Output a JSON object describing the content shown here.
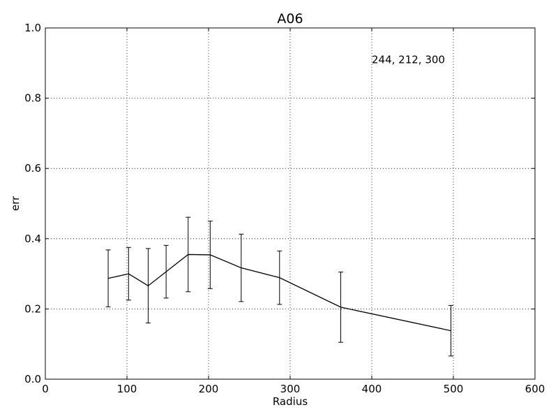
{
  "chart_data": {
    "type": "line",
    "title": "A06",
    "xlabel": "Radius",
    "ylabel": "err",
    "xlim": [
      0,
      600
    ],
    "ylim": [
      0,
      1.0
    ],
    "xticks": [
      0,
      100,
      200,
      300,
      400,
      500,
      600
    ],
    "yticks": [
      0.0,
      0.2,
      0.4,
      0.6,
      0.8,
      1.0
    ],
    "xtick_labels": [
      "0",
      "100",
      "200",
      "300",
      "400",
      "500",
      "600"
    ],
    "ytick_labels": [
      "0.0",
      "0.2",
      "0.4",
      "0.6",
      "0.8",
      "1.0"
    ],
    "grid": true,
    "annotation": {
      "text": "244, 212, 300",
      "x": 400,
      "y": 0.9
    },
    "series": [
      {
        "color": "#000000",
        "points": [
          {
            "x": 77,
            "y": 0.287,
            "err": 0.081
          },
          {
            "x": 102,
            "y": 0.3,
            "err": 0.075
          },
          {
            "x": 126,
            "y": 0.266,
            "err": 0.106
          },
          {
            "x": 148,
            "y": 0.306,
            "err": 0.075
          },
          {
            "x": 175,
            "y": 0.355,
            "err": 0.106
          },
          {
            "x": 202,
            "y": 0.354,
            "err": 0.096
          },
          {
            "x": 240,
            "y": 0.317,
            "err": 0.096
          },
          {
            "x": 287,
            "y": 0.289,
            "err": 0.076
          },
          {
            "x": 362,
            "y": 0.205,
            "err": 0.1
          },
          {
            "x": 497,
            "y": 0.138,
            "err": 0.072
          }
        ]
      }
    ]
  }
}
